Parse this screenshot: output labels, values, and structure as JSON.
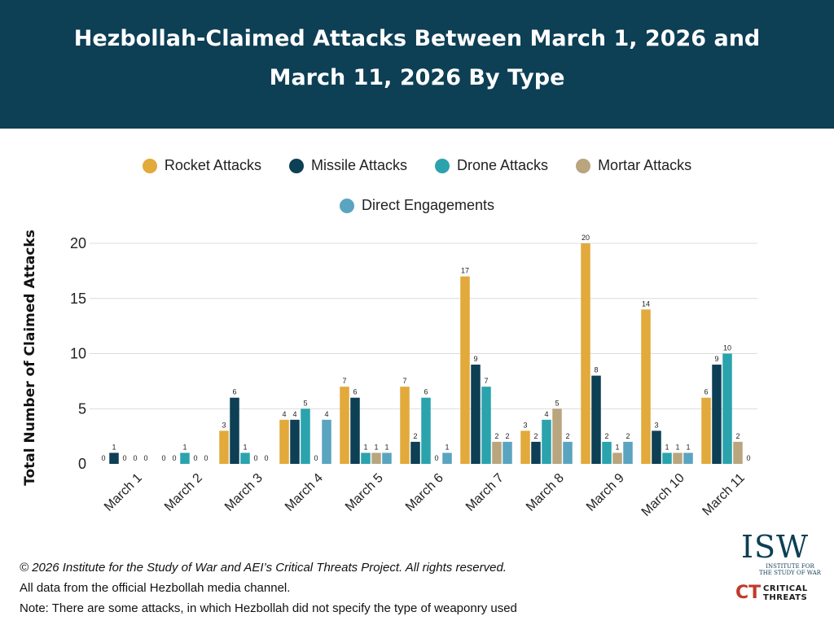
{
  "header": {
    "title_line1": "Hezbollah-Claimed Attacks Between March 1, 2026 and",
    "title_line2": "March 11, 2026 By Type",
    "background_color": "#0d3f55"
  },
  "chart_data": {
    "type": "bar",
    "ylabel": "Total Number of Claimed Attacks",
    "xlabel": "",
    "ylim": [
      0,
      20
    ],
    "yticks": [
      0,
      5,
      10,
      15,
      20
    ],
    "grid": true,
    "legend_placement": "top-center",
    "categories": [
      "March 1",
      "March 2",
      "March 3",
      "March 4",
      "March 5",
      "March 6",
      "March 7",
      "March 8",
      "March 9",
      "March 10",
      "March 11"
    ],
    "series": [
      {
        "name": "Rocket Attacks",
        "color": "#e2a93b",
        "values": [
          0,
          0,
          3,
          4,
          7,
          7,
          17,
          3,
          20,
          14,
          6
        ]
      },
      {
        "name": "Missile Attacks",
        "color": "#0d3f55",
        "values": [
          1,
          0,
          6,
          4,
          6,
          2,
          9,
          2,
          8,
          3,
          9
        ]
      },
      {
        "name": "Drone Attacks",
        "color": "#2aa3ad",
        "values": [
          0,
          1,
          1,
          5,
          1,
          6,
          7,
          4,
          2,
          1,
          10
        ]
      },
      {
        "name": "Mortar Attacks",
        "color": "#b9a57e",
        "values": [
          0,
          0,
          0,
          0,
          1,
          0,
          2,
          5,
          1,
          1,
          2
        ]
      },
      {
        "name": "Direct Engagements",
        "color": "#5aa4c0",
        "values": [
          0,
          0,
          0,
          4,
          1,
          1,
          2,
          2,
          2,
          1,
          0
        ]
      }
    ]
  },
  "footer": {
    "copyright": "© 2026 Institute for the Study of War and AEI’s Critical Threats Project. All rights reserved.",
    "source": "All data from the official Hezbollah media channel.",
    "note": "Note: There are some attacks, in which Hezbollah did not specify the type of weaponry used"
  },
  "logos": {
    "isw_letters": "ISW",
    "isw_subtitle": "INSTITUTE FOR THE STUDY OF WAR",
    "ct_mark": "CT",
    "ct_text": "CRITICAL THREATS"
  }
}
